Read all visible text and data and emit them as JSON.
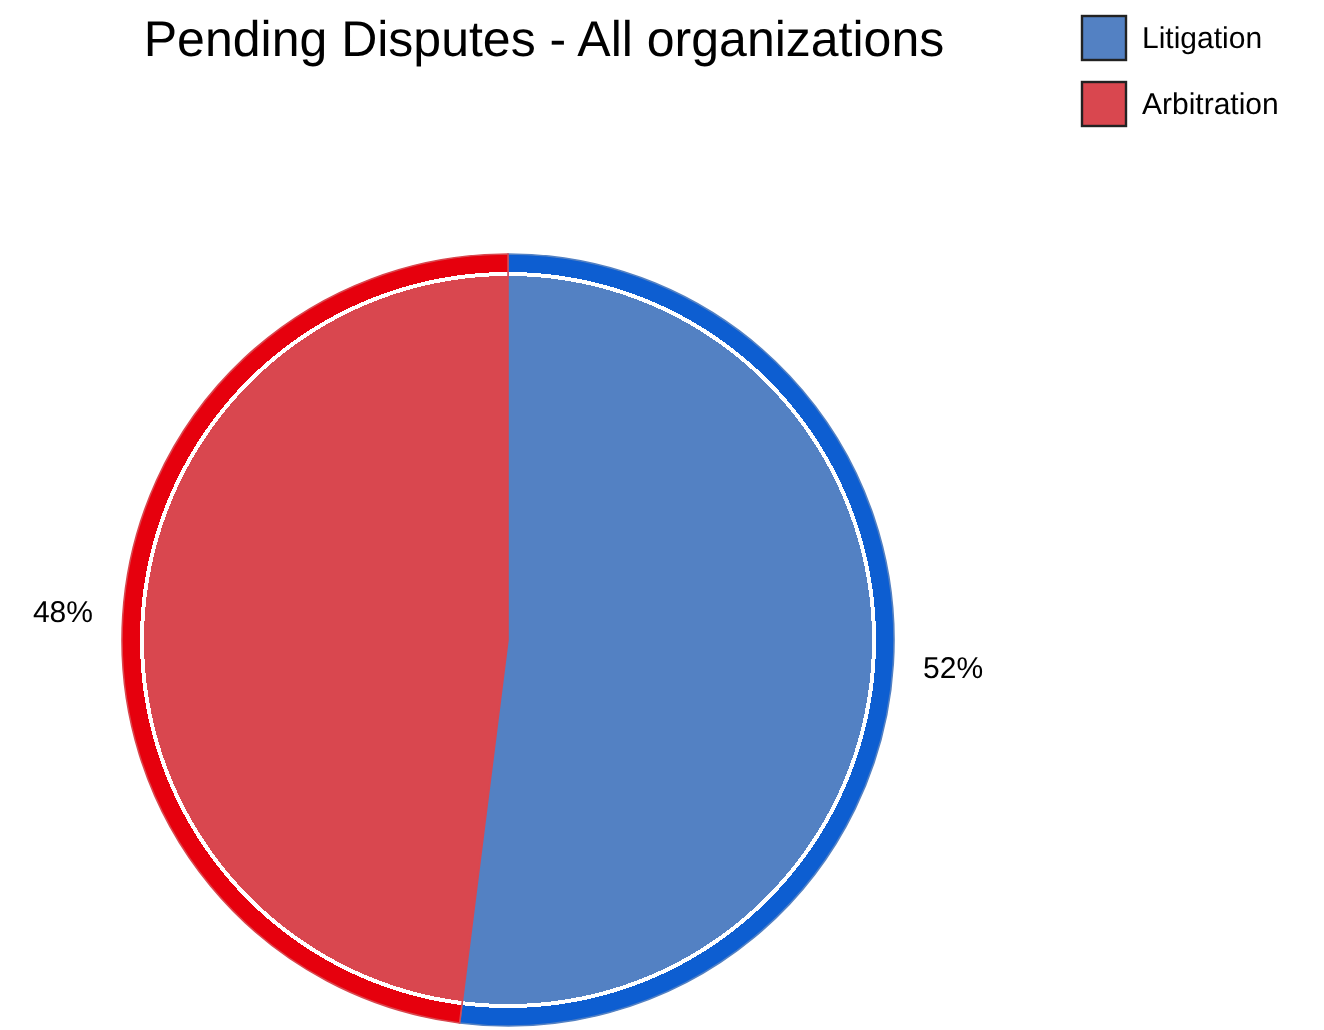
{
  "chart_data": {
    "type": "pie",
    "title": "Pending Disputes - All organizations",
    "categories": [
      "Litigation",
      "Arbitration"
    ],
    "values": [
      52,
      48
    ],
    "colors": [
      "#5381c3",
      "#d9474f"
    ],
    "legend": "top right",
    "value_labels": [
      "52%",
      "48%"
    ]
  }
}
